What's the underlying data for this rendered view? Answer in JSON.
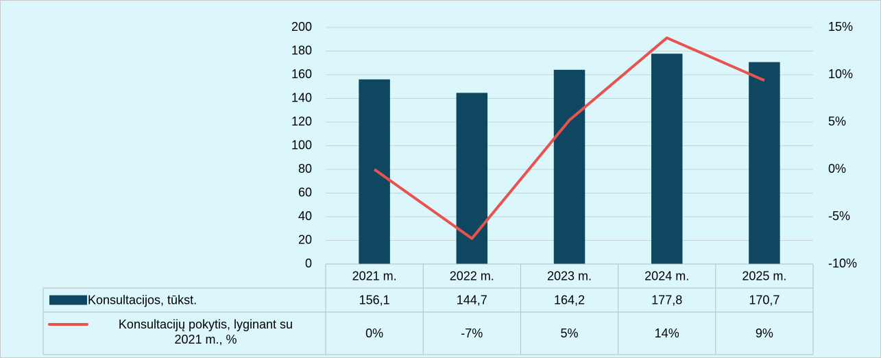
{
  "chart_data": {
    "type": "bar",
    "categories": [
      "2021 m.",
      "2022 m.",
      "2023 m.",
      "2024 m.",
      "2025 m."
    ],
    "series": [
      {
        "name": "Konsultacijos, tūkst.",
        "type": "bar",
        "color": "#0f4761",
        "values": [
          156.1,
          144.7,
          164.2,
          177.8,
          170.7
        ],
        "value_labels": [
          "156,1",
          "144,7",
          "164,2",
          "177,8",
          "170,7"
        ]
      },
      {
        "name": "Konsultacijų pokytis, lyginant su 2021 m., %",
        "type": "line",
        "axis": "y2",
        "color": "#e8534f",
        "values": [
          0,
          -7.3,
          5.2,
          13.9,
          9.4
        ],
        "value_labels": [
          "0%",
          "-7%",
          "5%",
          "14%",
          "9%"
        ]
      }
    ],
    "ylim": [
      0,
      200
    ],
    "yticks": [
      0,
      20,
      40,
      60,
      80,
      100,
      120,
      140,
      160,
      180,
      200
    ],
    "y2lim": [
      -10,
      15
    ],
    "y2ticks": [
      {
        "value": -10,
        "label": "-10%"
      },
      {
        "value": -5,
        "label": "-5%"
      },
      {
        "value": 0,
        "label": "0%"
      },
      {
        "value": 5,
        "label": "5%"
      },
      {
        "value": 10,
        "label": "10%"
      },
      {
        "value": 15,
        "label": "15%"
      }
    ],
    "grid": true,
    "data_table": true
  }
}
